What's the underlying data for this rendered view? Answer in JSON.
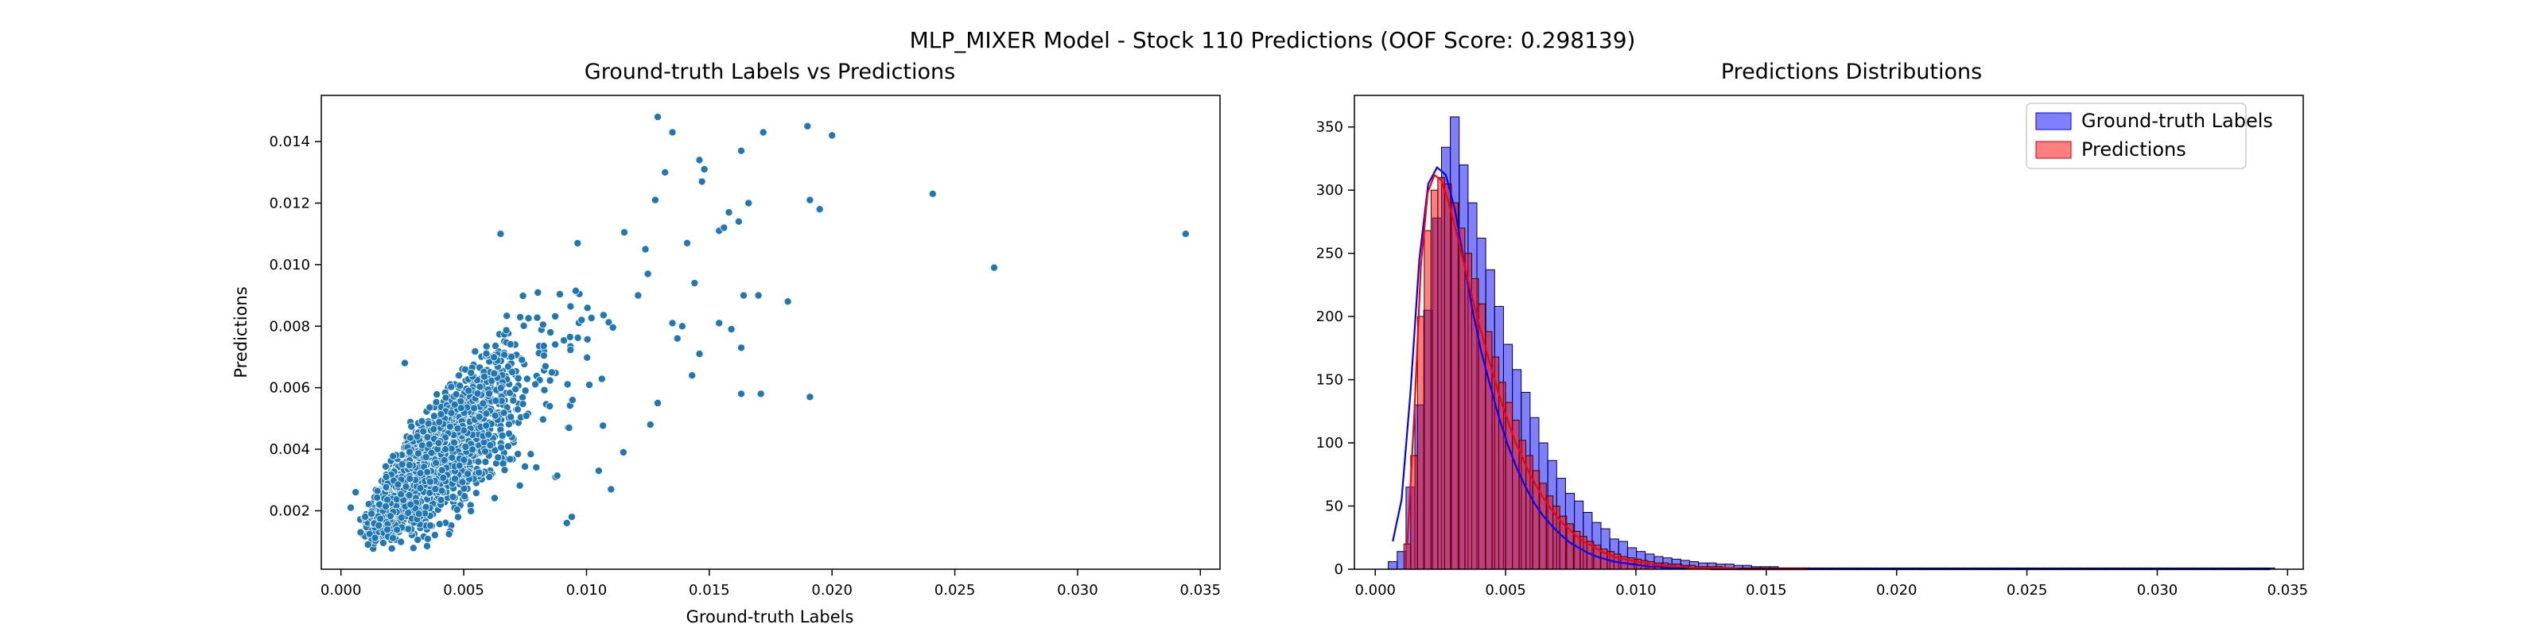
{
  "figure": {
    "suptitle": "MLP_MIXER Model - Stock 110 Predictions (OOF Score: 0.298139)"
  },
  "colors": {
    "scatter": "#1f77b4",
    "gt": "#0000ff",
    "pred": "#ff0000",
    "axis": "#000000"
  },
  "chart_data": [
    {
      "type": "scatter",
      "title": "Ground-truth Labels vs Predictions",
      "xlabel": "Ground-truth Labels",
      "ylabel": "Predictions",
      "xlim": [
        -0.0008,
        0.0358
      ],
      "ylim": [
        0.0001,
        0.0155
      ],
      "xticks": [
        0.0,
        0.005,
        0.01,
        0.015,
        0.02,
        0.025,
        0.03,
        0.035
      ],
      "xtick_labels": [
        "0.000",
        "0.005",
        "0.010",
        "0.015",
        "0.020",
        "0.025",
        "0.030",
        "0.035"
      ],
      "yticks": [
        0.002,
        0.004,
        0.006,
        0.008,
        0.01,
        0.012,
        0.014
      ],
      "ytick_labels": [
        "0.002",
        "0.004",
        "0.006",
        "0.008",
        "0.010",
        "0.012",
        "0.014"
      ],
      "grid": false,
      "points": [
        [
          0.0129,
          0.0148
        ],
        [
          0.019,
          0.0145
        ],
        [
          0.0172,
          0.0143
        ],
        [
          0.0135,
          0.0143
        ],
        [
          0.02,
          0.0142
        ],
        [
          0.0163,
          0.0137
        ],
        [
          0.0146,
          0.0134
        ],
        [
          0.0148,
          0.0131
        ],
        [
          0.0132,
          0.013
        ],
        [
          0.0147,
          0.0127
        ],
        [
          0.0241,
          0.0123
        ],
        [
          0.0191,
          0.0121
        ],
        [
          0.0195,
          0.0118
        ],
        [
          0.0128,
          0.0121
        ],
        [
          0.0166,
          0.012
        ],
        [
          0.0158,
          0.0117
        ],
        [
          0.0154,
          0.0111
        ],
        [
          0.0162,
          0.0114
        ],
        [
          0.0156,
          0.0112
        ],
        [
          0.0344,
          0.011
        ],
        [
          0.0266,
          0.0099
        ],
        [
          0.017,
          0.009
        ],
        [
          0.0182,
          0.0088
        ],
        [
          0.0164,
          0.009
        ],
        [
          0.0154,
          0.0081
        ],
        [
          0.0159,
          0.0079
        ],
        [
          0.0163,
          0.0073
        ],
        [
          0.0191,
          0.0057
        ],
        [
          0.0171,
          0.0058
        ],
        [
          0.0163,
          0.0058
        ],
        [
          0.0143,
          0.0064
        ],
        [
          0.0129,
          0.0055
        ],
        [
          0.0146,
          0.0071
        ],
        [
          0.0126,
          0.0048
        ],
        [
          0.0115,
          0.0039
        ],
        [
          0.0105,
          0.0033
        ],
        [
          0.0094,
          0.0018
        ],
        [
          0.0092,
          0.0016
        ],
        [
          0.011,
          0.0027
        ],
        [
          0.0137,
          0.0076
        ],
        [
          0.0139,
          0.008
        ],
        [
          0.0121,
          0.009
        ],
        [
          0.0141,
          0.0107
        ],
        [
          0.0124,
          0.0105
        ],
        [
          0.0125,
          0.0097
        ],
        [
          0.0098,
          0.0082
        ],
        [
          0.0065,
          0.011
        ],
        [
          0.0026,
          0.0068
        ],
        [
          0.0144,
          0.0094
        ],
        [
          0.0135,
          0.0081
        ],
        [
          0.0006,
          0.0026
        ],
        [
          0.0004,
          0.0021
        ],
        [
          0.0008,
          0.0013
        ],
        [
          0.0011,
          0.0009
        ]
      ],
      "dense_cloud": {
        "description_hidden": true,
        "n": 2700,
        "x_lognormal_median": 0.0034,
        "x_lognormal_sigma": 0.42,
        "y_slope": 0.72,
        "y_intercept": 0.0008,
        "y_noise_rel": 0.22
      }
    },
    {
      "type": "histogram",
      "title": "Predictions Distributions",
      "xlim": [
        -0.0008,
        0.0356
      ],
      "ylim": [
        0,
        375
      ],
      "xticks": [
        0.0,
        0.005,
        0.01,
        0.015,
        0.02,
        0.025,
        0.03,
        0.035
      ],
      "xtick_labels": [
        "0.000",
        "0.005",
        "0.010",
        "0.015",
        "0.020",
        "0.025",
        "0.030",
        "0.035"
      ],
      "yticks": [
        0,
        50,
        100,
        150,
        200,
        250,
        300,
        350
      ],
      "ytick_labels": [
        "0",
        "50",
        "100",
        "150",
        "200",
        "250",
        "300",
        "350"
      ],
      "grid": false,
      "legend_position": "upper-right",
      "series": [
        {
          "name": "Ground-truth Labels",
          "bin_start": 0.0005,
          "bin_width": 0.00034,
          "counts": [
            6,
            14,
            65,
            130,
            205,
            278,
            334,
            358,
            320,
            290,
            262,
            237,
            208,
            178,
            158,
            140,
            120,
            100,
            86,
            72,
            60,
            54,
            45,
            37,
            32,
            24,
            22,
            17,
            14,
            12,
            10,
            9,
            8,
            7,
            6,
            5,
            5,
            4,
            4,
            3,
            3,
            2,
            2,
            2,
            1,
            1,
            1,
            1,
            1,
            1,
            1,
            1,
            1,
            1,
            1,
            1,
            1,
            1,
            1,
            1,
            1,
            1,
            1,
            1,
            1,
            1,
            1,
            1,
            1,
            1,
            1,
            1,
            1,
            1,
            1,
            1,
            1,
            1,
            1,
            1,
            1,
            1,
            1,
            1,
            1,
            1,
            1,
            1,
            1,
            1,
            1,
            1,
            1,
            1,
            1,
            1,
            1,
            1,
            1,
            1
          ],
          "kde": [
            22,
            55,
            140,
            245,
            305,
            318,
            312,
            285,
            245,
            205,
            172,
            145,
            120,
            98,
            80,
            65,
            52,
            42,
            34,
            27,
            21,
            17,
            13,
            10,
            8,
            6,
            5,
            4,
            3,
            2,
            2,
            1,
            1,
            1,
            1,
            1,
            0,
            0,
            0,
            0,
            0,
            0,
            0,
            0,
            0,
            0,
            0,
            0,
            0,
            0,
            0,
            0,
            0,
            0,
            0,
            0,
            0,
            0,
            0,
            0,
            0,
            0,
            0,
            0,
            0,
            0,
            0,
            0,
            0,
            0,
            0,
            0,
            0,
            0,
            0,
            0,
            0,
            0,
            0,
            0,
            0,
            0,
            0,
            0,
            0,
            0,
            0,
            0,
            0,
            0,
            0,
            0,
            0,
            0,
            0,
            0,
            0,
            0,
            0,
            0
          ]
        },
        {
          "name": "Predictions",
          "bin_start": 0.0011,
          "bin_width": 0.00026,
          "counts": [
            20,
            90,
            200,
            268,
            300,
            310,
            305,
            290,
            270,
            250,
            230,
            210,
            188,
            168,
            148,
            132,
            118,
            102,
            90,
            78,
            68,
            58,
            50,
            42,
            36,
            30,
            26,
            22,
            19,
            16,
            14,
            12,
            10,
            9,
            8,
            7,
            6,
            5,
            5,
            4,
            4,
            3,
            3,
            2,
            2,
            2,
            2,
            1,
            1,
            1,
            1,
            1,
            1,
            1,
            1,
            1,
            1,
            1,
            1,
            1
          ],
          "kde": [
            20,
            120,
            240,
            298,
            312,
            308,
            292,
            272,
            250,
            228,
            206,
            186,
            166,
            148,
            130,
            115,
            100,
            88,
            76,
            66,
            57,
            49,
            42,
            36,
            31,
            26,
            22,
            19,
            16,
            13,
            11,
            9,
            8,
            7,
            6,
            5,
            4,
            3,
            3,
            2,
            2,
            2,
            1,
            1,
            1,
            1,
            1,
            1,
            1,
            0,
            0,
            0,
            0,
            0,
            0,
            0,
            0,
            0,
            0,
            0
          ]
        }
      ]
    }
  ]
}
